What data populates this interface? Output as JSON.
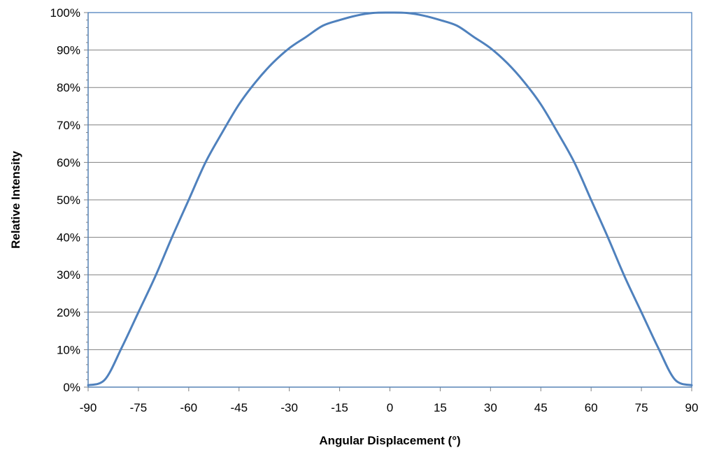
{
  "chart_data": {
    "type": "line",
    "title": "",
    "xlabel": "Angular Displacement (°)",
    "ylabel": "Relative Intensity",
    "xlim": [
      -90,
      90
    ],
    "ylim": [
      0,
      100
    ],
    "x_ticks": [
      -90,
      -75,
      -60,
      -45,
      -30,
      -15,
      0,
      15,
      30,
      45,
      60,
      75,
      90
    ],
    "x_tick_labels": [
      "-90",
      "-75",
      "-60",
      "-45",
      "-30",
      "-15",
      "0",
      "15",
      "30",
      "45",
      "60",
      "75",
      "90"
    ],
    "y_ticks": [
      0,
      10,
      20,
      30,
      40,
      50,
      60,
      70,
      80,
      90,
      100
    ],
    "y_tick_labels": [
      "0%",
      "10%",
      "20%",
      "30%",
      "40%",
      "50%",
      "60%",
      "70%",
      "80%",
      "90%",
      "100%"
    ],
    "grid": "horizontal",
    "legend": "none",
    "series": [
      {
        "color": "#4f81bd",
        "x": [
          -90,
          -85,
          -80,
          -75,
          -70,
          -65,
          -60,
          -55,
          -50,
          -45,
          -40,
          -35,
          -30,
          -25,
          -20,
          -15,
          -10,
          -5,
          0,
          5,
          10,
          15,
          20,
          25,
          30,
          35,
          40,
          45,
          50,
          55,
          60,
          65,
          70,
          75,
          80,
          85,
          90
        ],
        "y": [
          0.5,
          2,
          10.5,
          20,
          29.5,
          40,
          50,
          60,
          68,
          75.5,
          81.5,
          86.5,
          90.5,
          93.5,
          96.5,
          98,
          99.2,
          99.9,
          100,
          99.9,
          99.2,
          98,
          96.5,
          93.5,
          90.5,
          86.5,
          81.5,
          75.5,
          68,
          60,
          50,
          40,
          29.5,
          20,
          10.5,
          2,
          0.5
        ]
      }
    ]
  },
  "colors": {
    "series": "#4f81bd",
    "plot_border": "#4f81bd",
    "gridline": "#808080",
    "axis": "#808080"
  }
}
